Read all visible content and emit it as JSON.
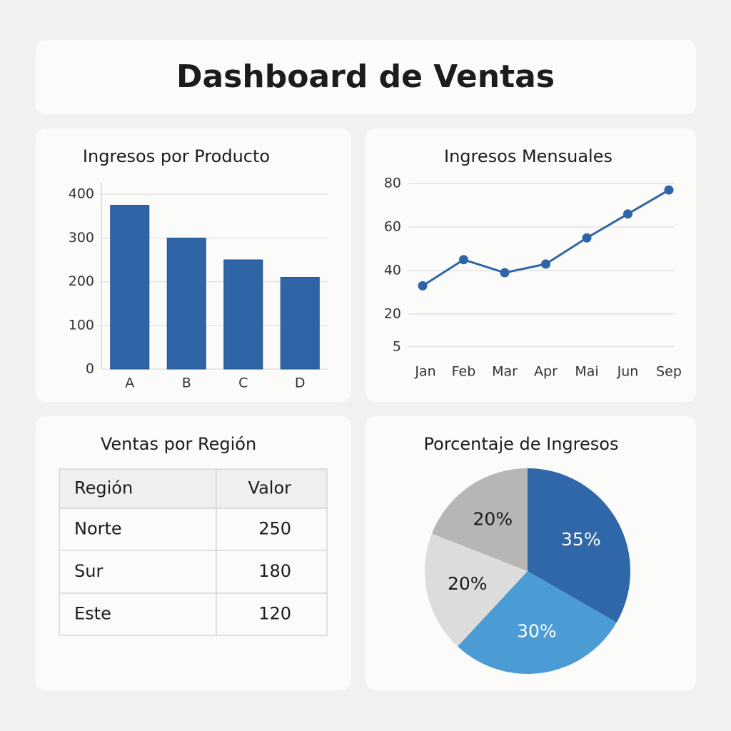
{
  "header": {
    "title": "Dashboard de Ventas"
  },
  "chart_data": [
    {
      "type": "bar",
      "title": "Ingresos por Producto",
      "categories": [
        "A",
        "B",
        "C",
        "D"
      ],
      "values": [
        375,
        300,
        250,
        210
      ],
      "color": "#2f65a7",
      "ylim": [
        0,
        420
      ],
      "yticks": [
        0,
        100,
        200,
        300,
        400
      ],
      "grid": true
    },
    {
      "type": "line",
      "title": "Ingresos Mensuales",
      "categories": [
        "Jan",
        "Feb",
        "Mar",
        "Apr",
        "Mai",
        "Jun",
        "Sep"
      ],
      "values": [
        33,
        45,
        39,
        43,
        55,
        66,
        77
      ],
      "color": "#2f65a7",
      "ylim": [
        0,
        80
      ],
      "yticks": [
        5,
        20,
        40,
        60,
        80
      ],
      "grid": true
    },
    {
      "type": "pie",
      "title": "Porcentaje de Ingresos",
      "values": [
        35,
        30,
        20,
        20
      ],
      "value_labels": [
        "35%",
        "30%",
        "20%",
        "20%"
      ],
      "colors": [
        "#2f67a8",
        "#4b9cd5",
        "#dcdcda",
        "#b6b6b4"
      ]
    }
  ],
  "table": {
    "title": "Ventas por Región",
    "columns": [
      "Región",
      "Valor"
    ],
    "rows": [
      [
        "Norte",
        250
      ],
      [
        "Sur",
        180
      ],
      [
        "Este",
        120
      ]
    ]
  }
}
